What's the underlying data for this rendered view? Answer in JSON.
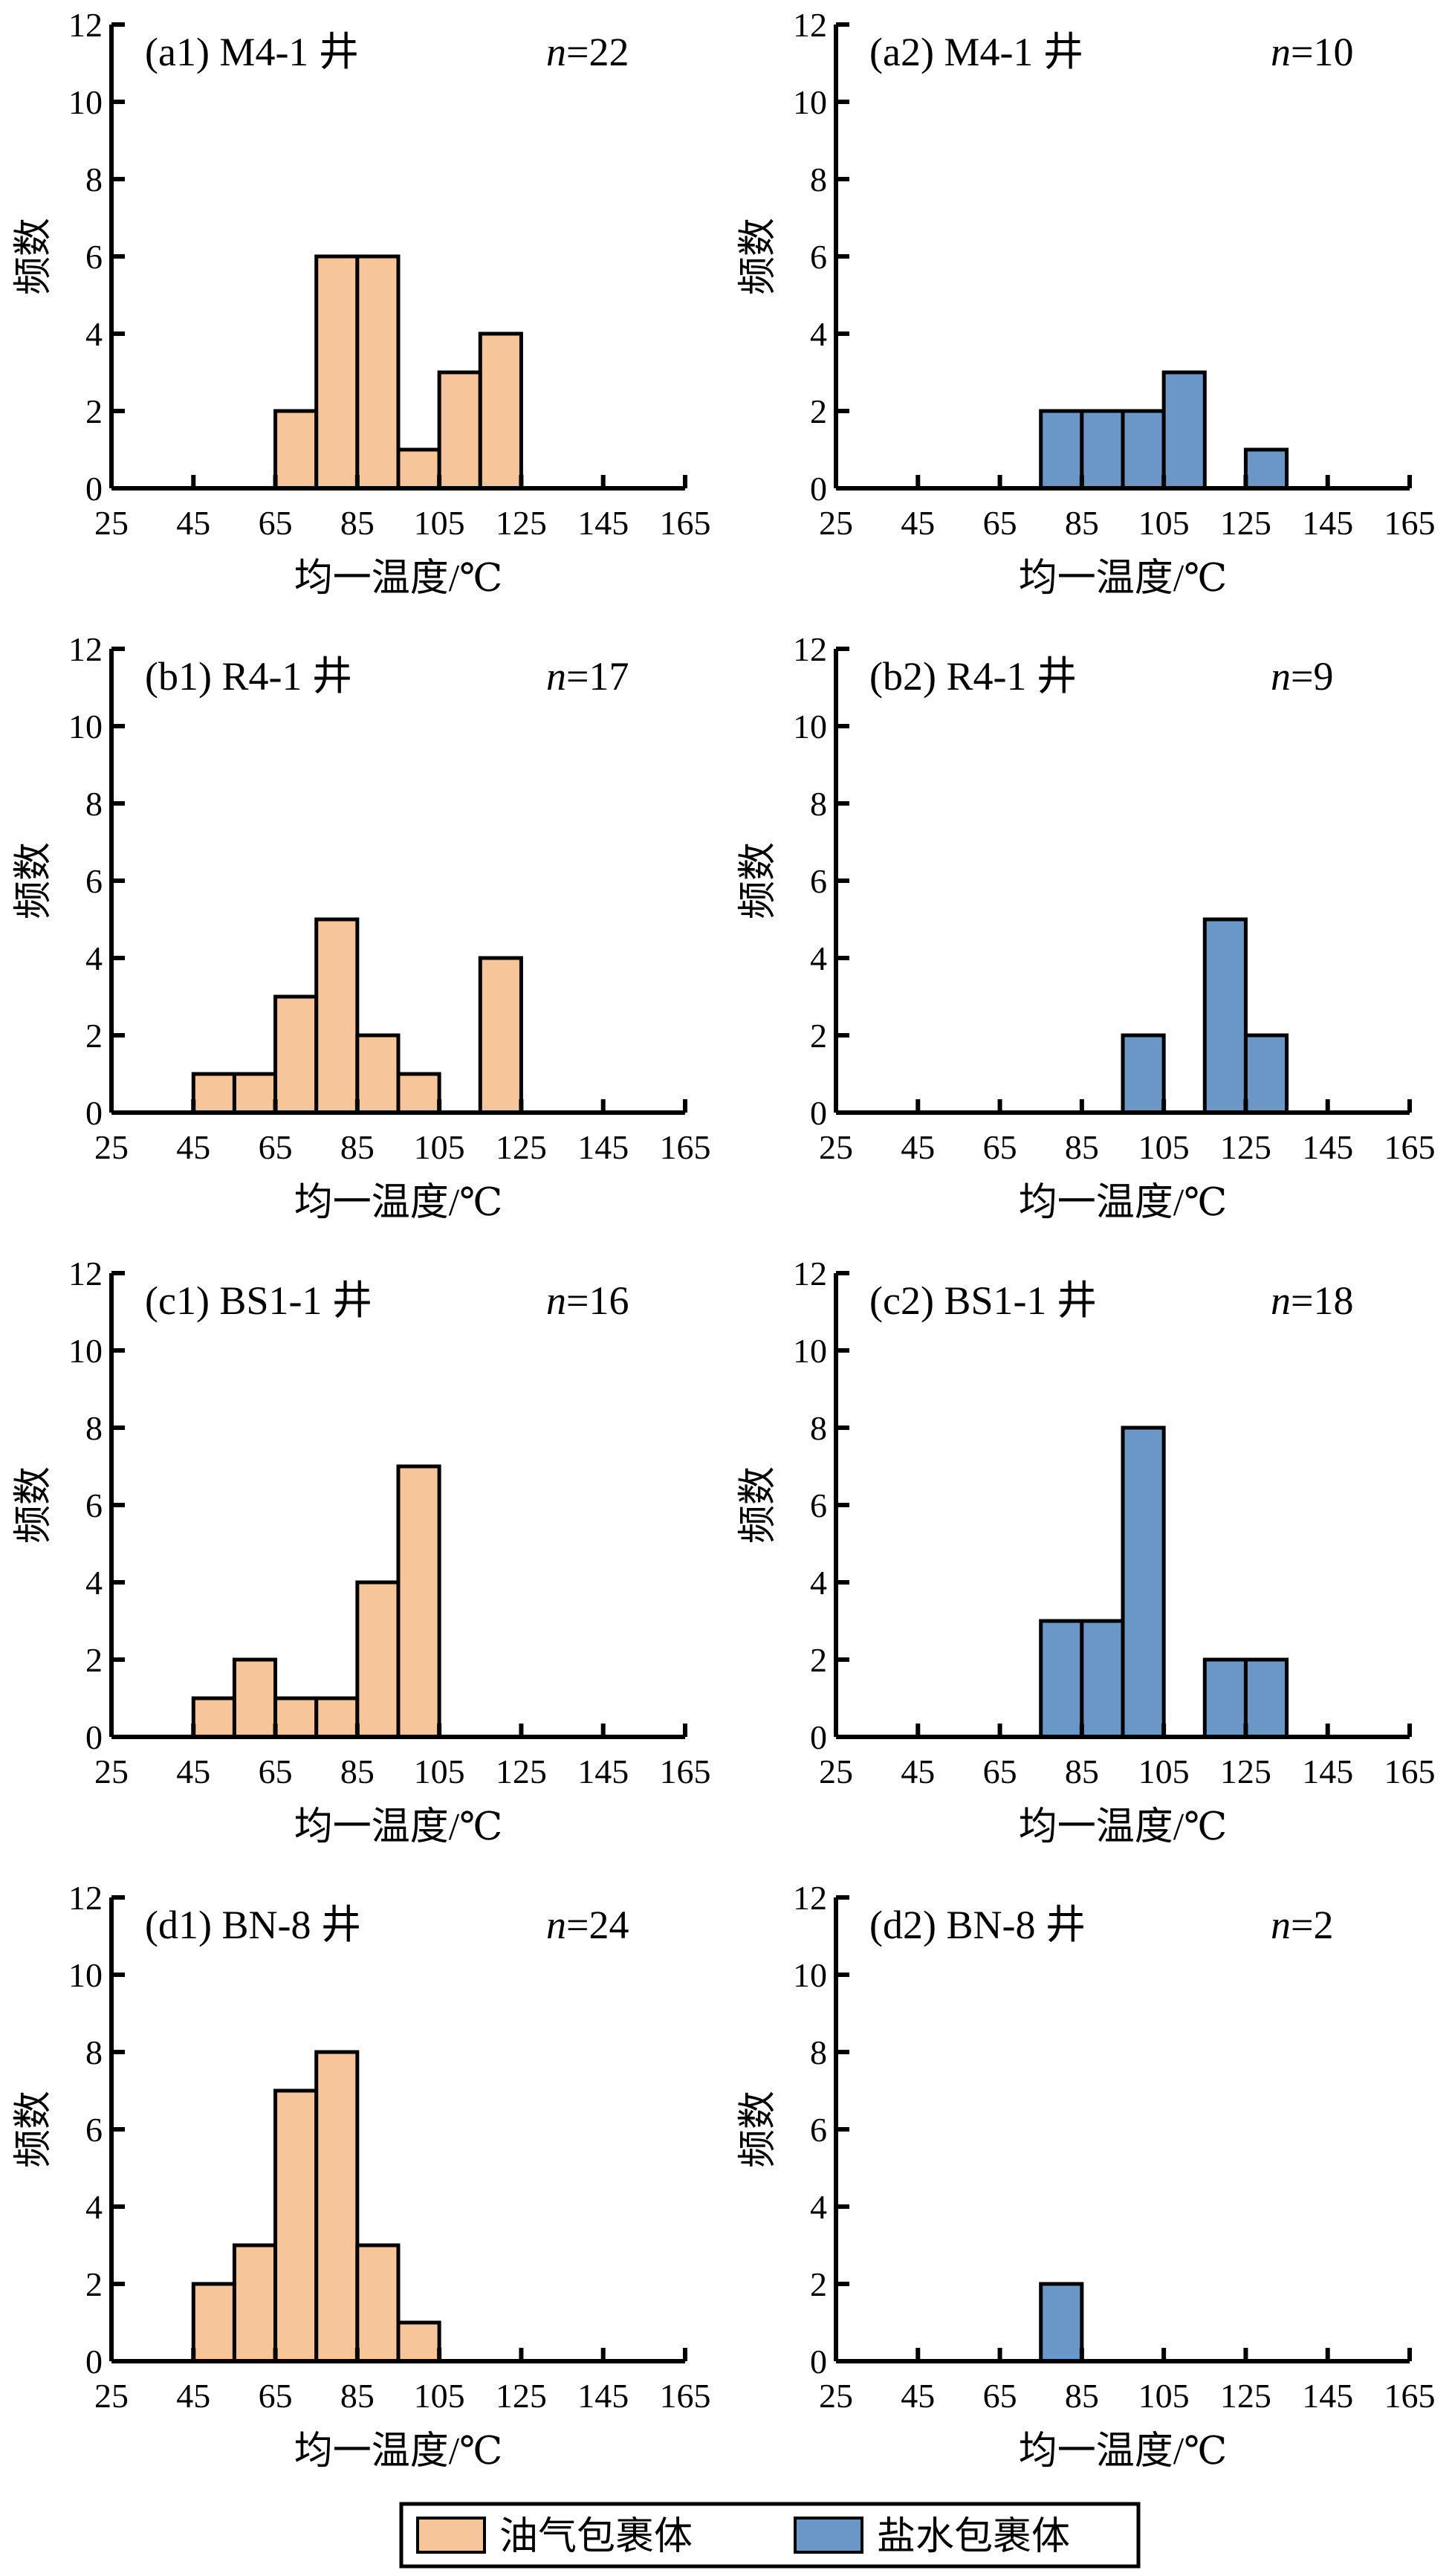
{
  "chart_data": [
    {
      "type": "bar",
      "id": "a1",
      "title": "(a1) M4-1 井",
      "n_label": "n",
      "n_value": "=22",
      "series": "油气包裹体",
      "bin_width": 10,
      "bin_starts": [
        65,
        75,
        85,
        95,
        105,
        115
      ],
      "values": [
        2,
        6,
        6,
        1,
        3,
        4
      ]
    },
    {
      "type": "bar",
      "id": "a2",
      "title": "(a2) M4-1 井",
      "n_label": "n",
      "n_value": "=10",
      "series": "盐水包裹体",
      "bin_width": 10,
      "bin_starts": [
        75,
        85,
        95,
        105,
        125
      ],
      "values": [
        2,
        2,
        2,
        3,
        1
      ]
    },
    {
      "type": "bar",
      "id": "b1",
      "title": "(b1) R4-1 井",
      "n_label": "n",
      "n_value": "=17",
      "series": "油气包裹体",
      "bin_width": 10,
      "bin_starts": [
        45,
        55,
        65,
        75,
        85,
        95,
        115
      ],
      "values": [
        1,
        1,
        3,
        5,
        2,
        1,
        4
      ]
    },
    {
      "type": "bar",
      "id": "b2",
      "title": "(b2) R4-1 井",
      "n_label": "n",
      "n_value": "=9",
      "series": "盐水包裹体",
      "bin_width": 10,
      "bin_starts": [
        95,
        115,
        125
      ],
      "values": [
        2,
        5,
        2
      ]
    },
    {
      "type": "bar",
      "id": "c1",
      "title": "(c1) BS1-1 井",
      "n_label": "n",
      "n_value": "=16",
      "series": "油气包裹体",
      "bin_width": 10,
      "bin_starts": [
        45,
        55,
        65,
        75,
        85,
        95
      ],
      "values": [
        1,
        2,
        1,
        1,
        4,
        7
      ]
    },
    {
      "type": "bar",
      "id": "c2",
      "title": "(c2) BS1-1 井",
      "n_label": "n",
      "n_value": "=18",
      "series": "盐水包裹体",
      "bin_width": 10,
      "bin_starts": [
        75,
        85,
        95,
        115,
        125
      ],
      "values": [
        3,
        3,
        8,
        2,
        2
      ]
    },
    {
      "type": "bar",
      "id": "d1",
      "title": "(d1) BN-8 井",
      "n_label": "n",
      "n_value": "=24",
      "series": "油气包裹体",
      "bin_width": 10,
      "bin_starts": [
        45,
        55,
        65,
        75,
        85,
        95
      ],
      "values": [
        2,
        3,
        7,
        8,
        3,
        1
      ]
    },
    {
      "type": "bar",
      "id": "d2",
      "title": "(d2) BN-8 井",
      "n_label": "n",
      "n_value": "=2",
      "series": "盐水包裹体",
      "bin_width": 10,
      "bin_starts": [
        75
      ],
      "values": [
        2
      ]
    }
  ],
  "axes": {
    "xlabel": "均一温度/℃",
    "ylabel": "频数",
    "xlim": [
      25,
      165
    ],
    "xticks": [
      "25",
      "45",
      "65",
      "85",
      "105",
      "125",
      "145",
      "165"
    ],
    "ylim": [
      0,
      12
    ],
    "yticks": [
      "0",
      "2",
      "4",
      "6",
      "8",
      "10",
      "12"
    ]
  },
  "legend": {
    "placement": "bottom-center",
    "items": [
      {
        "label": "油气包裹体",
        "color": "#F6C69A"
      },
      {
        "label": "盐水包裹体",
        "color": "#6A97C6"
      }
    ]
  }
}
